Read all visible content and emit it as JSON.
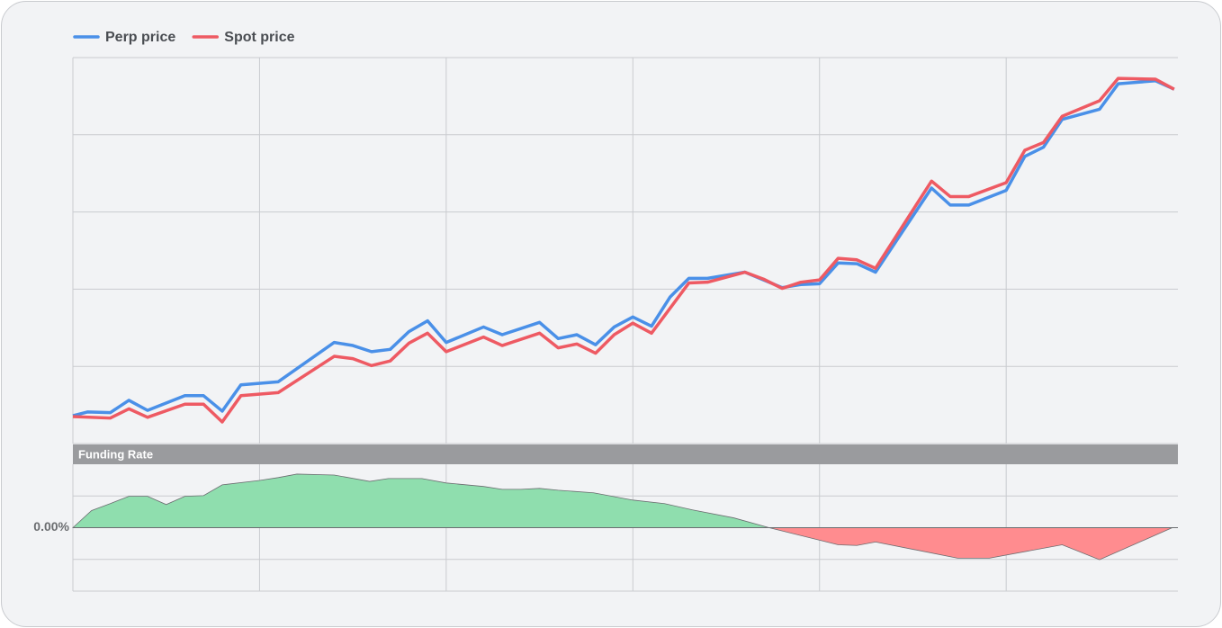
{
  "chart_data": [
    {
      "type": "line",
      "legend": "top-left",
      "grid": true,
      "xlim": [
        0,
        5.92
      ],
      "xticks": [
        0,
        1,
        2,
        3,
        4,
        5
      ],
      "ylim": [
        0,
        5
      ],
      "yticks": [
        0,
        1,
        2,
        3,
        4,
        5
      ],
      "series": [
        {
          "name": "Perp price",
          "color": "#4a90e8",
          "x": [
            0,
            0.08,
            0.2,
            0.3,
            0.4,
            0.6,
            0.7,
            0.8,
            0.9,
            1.1,
            1.4,
            1.5,
            1.6,
            1.7,
            1.8,
            1.9,
            2.0,
            2.2,
            2.3,
            2.5,
            2.6,
            2.7,
            2.8,
            2.9,
            3.0,
            3.1,
            3.2,
            3.3,
            3.4,
            3.6,
            3.7,
            3.8,
            3.9,
            4.0,
            4.1,
            4.2,
            4.3,
            4.6,
            4.7,
            4.8,
            5.0,
            5.1,
            5.2,
            5.3,
            5.5,
            5.6,
            5.8,
            5.9
          ],
          "values": [
            0.36,
            0.41,
            0.4,
            0.56,
            0.43,
            0.62,
            0.62,
            0.42,
            0.76,
            0.8,
            1.31,
            1.27,
            1.19,
            1.22,
            1.45,
            1.59,
            1.31,
            1.51,
            1.41,
            1.57,
            1.36,
            1.41,
            1.28,
            1.51,
            1.64,
            1.52,
            1.9,
            2.14,
            2.14,
            2.22,
            2.12,
            2.02,
            2.06,
            2.07,
            2.34,
            2.33,
            2.22,
            3.31,
            3.09,
            3.09,
            3.28,
            3.72,
            3.84,
            4.2,
            4.33,
            4.66,
            4.7,
            4.59
          ]
        },
        {
          "name": "Spot price",
          "color": "#ee5a63",
          "x": [
            0,
            0.2,
            0.3,
            0.4,
            0.6,
            0.7,
            0.8,
            0.9,
            1.1,
            1.4,
            1.5,
            1.6,
            1.7,
            1.8,
            1.9,
            2.0,
            2.2,
            2.3,
            2.5,
            2.6,
            2.7,
            2.8,
            2.9,
            3.0,
            3.1,
            3.3,
            3.4,
            3.6,
            3.7,
            3.8,
            3.9,
            4.0,
            4.1,
            4.2,
            4.3,
            4.6,
            4.7,
            4.8,
            5.0,
            5.1,
            5.2,
            5.3,
            5.5,
            5.6,
            5.8,
            5.9
          ],
          "values": [
            0.35,
            0.33,
            0.45,
            0.34,
            0.51,
            0.51,
            0.28,
            0.62,
            0.66,
            1.13,
            1.1,
            1.01,
            1.07,
            1.3,
            1.43,
            1.19,
            1.38,
            1.27,
            1.43,
            1.24,
            1.29,
            1.17,
            1.41,
            1.56,
            1.43,
            2.08,
            2.09,
            2.22,
            2.13,
            2.01,
            2.09,
            2.12,
            2.4,
            2.38,
            2.27,
            3.4,
            3.2,
            3.2,
            3.38,
            3.8,
            3.9,
            4.24,
            4.44,
            4.73,
            4.72,
            4.59
          ]
        }
      ]
    },
    {
      "type": "area",
      "title": "Funding Rate",
      "grid": true,
      "positive_color": "#8fdeae",
      "negative_color": "#ff8c8f",
      "xlim": [
        0,
        5.92
      ],
      "xticks": [
        0,
        1,
        2,
        3,
        4,
        5
      ],
      "ylim": [
        -0.02,
        0.02
      ],
      "yticks": [
        -0.02,
        -0.01,
        {
          "value": 0,
          "label": "0.00%"
        },
        0.01,
        0.02
      ],
      "x": [
        0,
        0.1,
        0.2,
        0.3,
        0.4,
        0.5,
        0.6,
        0.7,
        0.8,
        1.0,
        1.1,
        1.2,
        1.4,
        1.59,
        1.69,
        1.87,
        2.0,
        2.2,
        2.3,
        2.4,
        2.5,
        2.6,
        2.79,
        3.0,
        3.17,
        3.32,
        3.54,
        3.73,
        4.1,
        4.2,
        4.3,
        4.74,
        4.91,
        5.3,
        5.5,
        5.89
      ],
      "values": [
        0,
        0.0054,
        0.0076,
        0.0099,
        0.0099,
        0.0073,
        0.0099,
        0.0101,
        0.0135,
        0.0149,
        0.0158,
        0.0169,
        0.0166,
        0.0146,
        0.0155,
        0.0155,
        0.0141,
        0.013,
        0.0121,
        0.0121,
        0.0124,
        0.0118,
        0.011,
        0.0087,
        0.0076,
        0.0056,
        0.0031,
        0,
        -0.0054,
        -0.0056,
        -0.0045,
        -0.0096,
        -0.0096,
        -0.0054,
        -0.0101,
        0
      ]
    }
  ]
}
